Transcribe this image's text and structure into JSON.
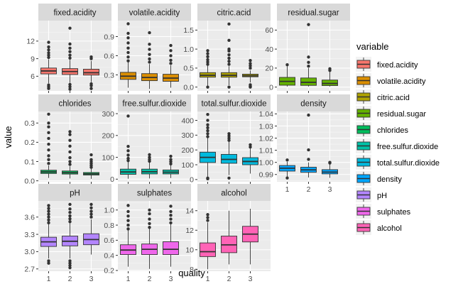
{
  "chart_data": {
    "type": "boxplot",
    "facet_layout": {
      "ncol": 4,
      "scales": "free_y"
    },
    "xlabel": "quality",
    "ylabel": "value",
    "x_categories": [
      "1",
      "2",
      "3"
    ],
    "legend": {
      "title": "variable",
      "position": "right"
    },
    "panels": [
      {
        "variable": "fixed.acidity",
        "strip_label": "fixed.acidity",
        "color": "#F8766D",
        "ylim": [
          3.5,
          15.5
        ],
        "ticks": [
          6,
          9,
          12
        ],
        "boxes": [
          {
            "quality": "1",
            "min": 4.8,
            "q1": 6.4,
            "median": 6.9,
            "q3": 7.4,
            "max": 8.9,
            "outliers": [
              3.9,
              4.2,
              4.5,
              9.2,
              9.6,
              10.0,
              10.5,
              11.0,
              11.8
            ]
          },
          {
            "quality": "2",
            "min": 4.9,
            "q1": 6.3,
            "median": 6.8,
            "q3": 7.3,
            "max": 8.8,
            "outliers": [
              3.8,
              4.2,
              4.6,
              9.1,
              9.6,
              10.2,
              10.8,
              11.5,
              14.2
            ]
          },
          {
            "quality": "3",
            "min": 5.0,
            "q1": 6.2,
            "median": 6.6,
            "q3": 7.2,
            "max": 8.6,
            "outliers": [
              3.9,
              4.4,
              4.7,
              9.0,
              9.3
            ]
          }
        ]
      },
      {
        "variable": "volatile.acidity",
        "strip_label": "volatile.acidity",
        "color": "#DB8E00",
        "ylim": [
          0.05,
          1.15
        ],
        "ticks": [
          0.3,
          0.6,
          0.9
        ],
        "boxes": [
          {
            "quality": "1",
            "min": 0.1,
            "q1": 0.23,
            "median": 0.28,
            "q3": 0.34,
            "max": 0.5,
            "outliers": [
              0.52,
              0.58,
              0.65,
              0.72,
              0.8,
              0.88,
              0.95,
              1.1
            ]
          },
          {
            "quality": "2",
            "min": 0.08,
            "q1": 0.21,
            "median": 0.26,
            "q3": 0.32,
            "max": 0.47,
            "outliers": [
              0.5,
              0.55,
              0.62,
              0.7,
              0.78,
              0.96
            ]
          },
          {
            "quality": "3",
            "min": 0.1,
            "q1": 0.2,
            "median": 0.25,
            "q3": 0.31,
            "max": 0.45,
            "outliers": [
              0.48,
              0.53,
              0.6,
              0.68,
              0.76
            ]
          }
        ]
      },
      {
        "variable": "citric.acid",
        "strip_label": "citric.acid",
        "color": "#AEA200",
        "ylim": [
          -0.1,
          1.75
        ],
        "ticks": [
          0.0,
          0.5,
          1.0,
          1.5
        ],
        "boxes": [
          {
            "quality": "1",
            "min": 0.02,
            "q1": 0.26,
            "median": 0.31,
            "q3": 0.38,
            "max": 0.56,
            "outliers": [
              0.0,
              0.6,
              0.66,
              0.72,
              0.8,
              0.88,
              0.96
            ]
          },
          {
            "quality": "2",
            "min": 0.05,
            "q1": 0.26,
            "median": 0.31,
            "q3": 0.38,
            "max": 0.55,
            "outliers": [
              0.0,
              0.6,
              0.68,
              0.76,
              0.85,
              0.95,
              1.0,
              1.23,
              1.66
            ]
          },
          {
            "quality": "3",
            "min": 0.12,
            "q1": 0.27,
            "median": 0.3,
            "q3": 0.34,
            "max": 0.44,
            "outliers": [
              0.0,
              0.02,
              0.06,
              0.5,
              0.56,
              0.62,
              0.7
            ]
          }
        ]
      },
      {
        "variable": "residual.sugar",
        "strip_label": "residual.sugar",
        "color": "#64B200",
        "ylim": [
          -4,
          70
        ],
        "ticks": [
          0,
          20,
          40,
          60
        ],
        "boxes": [
          {
            "quality": "1",
            "min": 0.6,
            "q1": 2.0,
            "median": 6.0,
            "q3": 10.2,
            "max": 22.0,
            "outliers": [
              23.5
            ]
          },
          {
            "quality": "2",
            "min": 0.6,
            "q1": 1.8,
            "median": 5.0,
            "q3": 9.6,
            "max": 20.0,
            "outliers": [
              22.0,
              26.0,
              31.6,
              65.8
            ]
          },
          {
            "quality": "3",
            "min": 0.6,
            "q1": 1.6,
            "median": 3.8,
            "q3": 7.4,
            "max": 16.0,
            "outliers": [
              17.5,
              19.3
            ]
          }
        ]
      },
      {
        "variable": "chlorides",
        "strip_label": "chlorides",
        "color": "#00BD5C",
        "ylim": [
          -0.005,
          0.36
        ],
        "ticks": [
          0.0,
          0.1,
          0.2,
          0.3
        ],
        "boxes": [
          {
            "quality": "1",
            "min": 0.015,
            "q1": 0.038,
            "median": 0.046,
            "q3": 0.055,
            "max": 0.08,
            "outliers": [
              0.09,
              0.11,
              0.13,
              0.16,
              0.19,
              0.22,
              0.25,
              0.28,
              0.3,
              0.346
            ]
          },
          {
            "quality": "2",
            "min": 0.012,
            "q1": 0.035,
            "median": 0.042,
            "q3": 0.051,
            "max": 0.075,
            "outliers": [
              0.085,
              0.1,
              0.12,
              0.15,
              0.18,
              0.21,
              0.24,
              0.255
            ]
          },
          {
            "quality": "3",
            "min": 0.01,
            "q1": 0.03,
            "median": 0.036,
            "q3": 0.043,
            "max": 0.062,
            "outliers": [
              0.07,
              0.08,
              0.09,
              0.1,
              0.11,
              0.135
            ]
          }
        ]
      },
      {
        "variable": "free.sulfur.dioxide",
        "strip_label": "free.sulfur.dioxide",
        "color": "#00C1A7",
        "ylim": [
          -12,
          310
        ],
        "ticks": [
          0,
          100,
          200,
          300
        ],
        "boxes": [
          {
            "quality": "1",
            "min": 2,
            "q1": 22,
            "median": 33,
            "q3": 46,
            "max": 80,
            "outliers": [
              85,
              95,
              110,
              130,
              150,
              289
            ]
          },
          {
            "quality": "2",
            "min": 3,
            "q1": 24,
            "median": 34,
            "q3": 46,
            "max": 78,
            "outliers": [
              82,
              90,
              100,
              112
            ]
          },
          {
            "quality": "3",
            "min": 5,
            "q1": 24,
            "median": 32,
            "q3": 42,
            "max": 66,
            "outliers": [
              70,
              80,
              90,
              105
            ]
          }
        ]
      },
      {
        "variable": "total.sulfur.dioxide",
        "strip_label": "total.sulfur.dioxide",
        "color": "#00BADE",
        "ylim": [
          -15,
          460
        ],
        "ticks": [
          0,
          100,
          200,
          300,
          400
        ],
        "boxes": [
          {
            "quality": "1",
            "min": 20,
            "q1": 115,
            "median": 150,
            "q3": 185,
            "max": 280,
            "outliers": [
              5,
              10,
              290,
              310,
              330,
              350,
              370,
              400,
              440
            ]
          },
          {
            "quality": "2",
            "min": 30,
            "q1": 110,
            "median": 136,
            "q3": 170,
            "max": 255,
            "outliers": [
              10,
              265,
              280,
              295,
              310
            ]
          },
          {
            "quality": "3",
            "min": 40,
            "q1": 100,
            "median": 122,
            "q3": 148,
            "max": 210,
            "outliers": [
              220,
              235
            ]
          }
        ]
      },
      {
        "variable": "density",
        "strip_label": "density",
        "color": "#00A6FF",
        "ylim": [
          0.984,
          1.042
        ],
        "ticks": [
          0.99,
          1.0,
          1.01,
          1.02,
          1.03,
          1.04
        ],
        "boxes": [
          {
            "quality": "1",
            "min": 0.988,
            "q1": 0.9928,
            "median": 0.9952,
            "q3": 0.9974,
            "max": 1.0005,
            "outliers": [
              0.9871,
              1.002
            ]
          },
          {
            "quality": "2",
            "min": 0.9875,
            "q1": 0.9918,
            "median": 0.9938,
            "q3": 0.996,
            "max": 1.0,
            "outliers": [
              1.0025,
              1.0103,
              1.039
            ]
          },
          {
            "quality": "3",
            "min": 0.9872,
            "q1": 0.9905,
            "median": 0.992,
            "q3": 0.994,
            "max": 0.999,
            "outliers": [
              0.9995,
              1.0
            ]
          }
        ]
      },
      {
        "variable": "pH",
        "strip_label": "pH",
        "color": "#B385FF",
        "ylim": [
          2.66,
          3.88
        ],
        "ticks": [
          2.7,
          3.0,
          3.3,
          3.6
        ],
        "boxes": [
          {
            "quality": "1",
            "min": 2.88,
            "q1": 3.09,
            "median": 3.17,
            "q3": 3.25,
            "max": 3.48,
            "outliers": [
              2.8,
              2.84,
              3.5,
              3.55,
              3.6,
              3.65,
              3.7,
              3.75,
              3.8
            ]
          },
          {
            "quality": "2",
            "min": 2.88,
            "q1": 3.1,
            "median": 3.18,
            "q3": 3.27,
            "max": 3.5,
            "outliers": [
              2.72,
              2.76,
              2.8,
              2.84,
              3.52,
              3.57,
              3.62,
              3.68,
              3.74,
              3.82
            ]
          },
          {
            "quality": "3",
            "min": 2.95,
            "q1": 3.12,
            "median": 3.21,
            "q3": 3.31,
            "max": 3.56,
            "outliers": [
              3.6,
              3.65,
              3.7,
              3.76,
              3.82
            ]
          }
        ]
      },
      {
        "variable": "sulphates",
        "strip_label": "sulphates",
        "color": "#EF67EB",
        "ylim": [
          0.19,
          1.12
        ],
        "ticks": [
          0.2,
          0.4,
          0.6,
          0.8,
          1.0
        ],
        "boxes": [
          {
            "quality": "1",
            "min": 0.25,
            "q1": 0.41,
            "median": 0.47,
            "q3": 0.54,
            "max": 0.73,
            "outliers": [
              0.75,
              0.8,
              0.86,
              0.92,
              0.98,
              1.06
            ]
          },
          {
            "quality": "2",
            "min": 0.22,
            "q1": 0.41,
            "median": 0.48,
            "q3": 0.55,
            "max": 0.75,
            "outliers": [
              0.77,
              0.82,
              0.88,
              0.95,
              1.0
            ]
          },
          {
            "quality": "3",
            "min": 0.25,
            "q1": 0.41,
            "median": 0.48,
            "q3": 0.58,
            "max": 0.81,
            "outliers": [
              0.83,
              0.88,
              0.93,
              0.98,
              1.05
            ]
          }
        ]
      },
      {
        "variable": "alcohol",
        "strip_label": "alcohol",
        "color": "#FF63B6",
        "ylim": [
          7.8,
          15.0
        ],
        "ticks": [
          8,
          10,
          12,
          14
        ],
        "boxes": [
          {
            "quality": "1",
            "min": 8.0,
            "q1": 9.3,
            "median": 9.8,
            "q3": 10.7,
            "max": 12.8,
            "outliers": [
              13.0,
              13.3,
              13.6
            ]
          },
          {
            "quality": "2",
            "min": 8.5,
            "q1": 9.7,
            "median": 10.5,
            "q3": 11.4,
            "max": 14.0,
            "outliers": []
          },
          {
            "quality": "3",
            "min": 8.5,
            "q1": 10.8,
            "median": 11.6,
            "q3": 12.4,
            "max": 14.2,
            "outliers": []
          }
        ]
      }
    ]
  }
}
